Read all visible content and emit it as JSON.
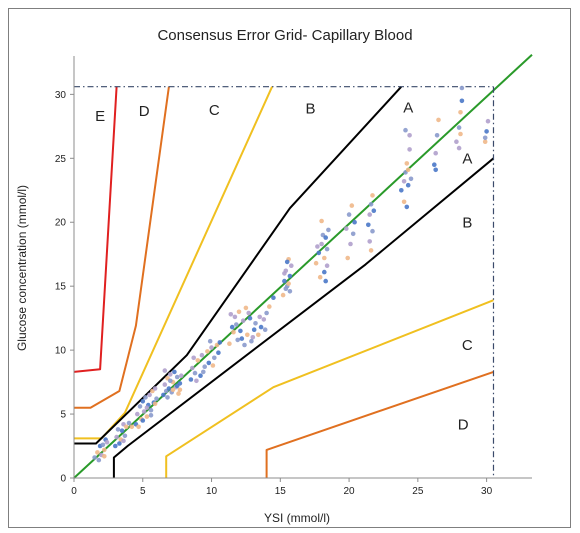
{
  "chart_data": {
    "type": "scatter",
    "title": "Consensus Error Grid- Capillary Blood",
    "xlabel": "YSI (mmol/l)",
    "ylabel": "Glucose concentration (mmol/l)",
    "xlim": [
      0,
      33.3
    ],
    "ylim": [
      0,
      33
    ],
    "xticks": [
      0,
      5,
      10,
      15,
      20,
      25,
      30
    ],
    "yticks": [
      0,
      5,
      10,
      15,
      20,
      25,
      30
    ],
    "grid": false,
    "legend": "none",
    "colors": {
      "E": "#e02020",
      "D": "#e07020",
      "C": "#f0c020",
      "B": "#000000",
      "identity": "#2a9a2a",
      "limit": "#3a4a6a",
      "points": [
        "#8a9acc",
        "#f0b88a",
        "#4a78c8",
        "#b0a0cc"
      ]
    },
    "zone_labels": [
      {
        "text": "E",
        "x": 1.9,
        "y": 27.9
      },
      {
        "text": "D",
        "x": 5.1,
        "y": 28.3
      },
      {
        "text": "C",
        "x": 10.2,
        "y": 28.4
      },
      {
        "text": "B",
        "x": 17.2,
        "y": 28.5
      },
      {
        "text": "A",
        "x": 24.3,
        "y": 28.6
      },
      {
        "text": "A",
        "x": 28.6,
        "y": 24.6
      },
      {
        "text": "B",
        "x": 28.6,
        "y": 19.6
      },
      {
        "text": "C",
        "x": 28.6,
        "y": 10.0
      },
      {
        "text": "D",
        "x": 28.3,
        "y": 3.8
      }
    ],
    "boundaries": [
      {
        "zone": "E",
        "color": "#e02020",
        "points": [
          [
            0,
            8.3
          ],
          [
            1.9,
            8.5
          ],
          [
            3.1,
            30.6
          ]
        ]
      },
      {
        "zone": "D",
        "color": "#e07020",
        "points": [
          [
            0,
            5.5
          ],
          [
            1.2,
            5.5
          ],
          [
            3.3,
            6.8
          ],
          [
            4.5,
            11.9
          ],
          [
            6.9,
            30.6
          ]
        ]
      },
      {
        "zone": "C",
        "color": "#f0c020",
        "points": [
          [
            0,
            3.1
          ],
          [
            2.0,
            3.1
          ],
          [
            3.7,
            5.1
          ],
          [
            14.4,
            30.6
          ]
        ]
      },
      {
        "zone": "B",
        "color": "#000000",
        "points": [
          [
            0,
            2.7
          ],
          [
            1.6,
            2.7
          ],
          [
            8.2,
            9.6
          ],
          [
            15.7,
            21.1
          ],
          [
            23.8,
            30.6
          ]
        ]
      },
      {
        "zone": "B",
        "color": "#000000",
        "points": [
          [
            2.9,
            0
          ],
          [
            2.9,
            1.6
          ],
          [
            3.9,
            2.5
          ],
          [
            21.2,
            16.7
          ],
          [
            30.5,
            25.0
          ]
        ]
      },
      {
        "zone": "C",
        "color": "#f0c020",
        "points": [
          [
            6.7,
            0
          ],
          [
            6.7,
            1.7
          ],
          [
            14.5,
            7.1
          ],
          [
            30.5,
            13.9
          ]
        ]
      },
      {
        "zone": "D",
        "color": "#e07020",
        "points": [
          [
            14.0,
            0
          ],
          [
            14.0,
            2.2
          ],
          [
            30.5,
            8.3
          ]
        ]
      }
    ],
    "identity_line": [
      [
        0,
        0
      ],
      [
        33.3,
        33.1
      ]
    ],
    "limit_lines": {
      "x": 30.5,
      "y": 30.6
    },
    "series": [
      {
        "x": [
          1.5,
          1.7,
          1.9,
          2.0,
          2.1,
          2.2,
          2.3,
          2.4,
          1.8,
          2.2
        ],
        "y": [
          1.6,
          2.0,
          2.5,
          1.8,
          2.6,
          2.2,
          3.0,
          2.8,
          1.4,
          1.7
        ]
      },
      {
        "x": [
          3.0,
          3.1,
          3.2,
          3.4,
          3.5,
          3.6,
          3.7,
          3.8,
          3.3,
          3.6,
          4.0,
          4.2
        ],
        "y": [
          2.5,
          3.2,
          3.8,
          3.0,
          3.7,
          4.2,
          3.3,
          4.0,
          2.7,
          2.9,
          4.3,
          4.0
        ]
      },
      {
        "x": [
          4.5,
          4.6,
          4.8,
          4.9,
          5.0,
          5.1,
          5.2,
          5.3,
          5.4,
          5.5,
          5.6,
          5.7,
          5.8,
          5.9,
          6.0,
          4.7,
          5.0,
          5.3,
          5.6,
          5.9
        ],
        "y": [
          4.2,
          5.0,
          5.6,
          4.6,
          6.0,
          5.2,
          6.3,
          4.8,
          5.7,
          6.5,
          5.3,
          6.8,
          5.9,
          7.0,
          6.2,
          4.0,
          4.5,
          5.5,
          4.9,
          5.8
        ]
      },
      {
        "x": [
          6.5,
          6.6,
          6.7,
          6.8,
          6.9,
          7.0,
          7.1,
          7.2,
          7.3,
          7.4,
          7.5,
          7.6,
          7.7,
          7.8,
          6.8,
          7.2,
          7.5,
          6.6,
          7.0,
          7.7
        ],
        "y": [
          6.5,
          7.3,
          6.8,
          7.8,
          7.0,
          8.1,
          6.7,
          7.5,
          8.3,
          7.1,
          7.9,
          6.6,
          7.4,
          8.0,
          6.3,
          6.9,
          7.2,
          8.4,
          7.6,
          6.9
        ]
      },
      {
        "x": [
          8.5,
          8.6,
          8.8,
          9.0,
          9.2,
          9.3,
          9.5,
          9.7,
          9.8,
          10.0,
          10.2,
          10.4,
          10.6,
          8.9,
          9.4,
          10.1,
          10.5,
          8.7,
          9.9
        ],
        "y": [
          7.7,
          8.6,
          8.2,
          9.2,
          8.0,
          9.6,
          8.7,
          9.9,
          9.0,
          10.2,
          9.4,
          10.4,
          10.6,
          7.6,
          8.3,
          8.8,
          9.8,
          9.4,
          10.7
        ]
      },
      {
        "x": [
          11.3,
          11.5,
          11.7,
          11.9,
          12.0,
          12.1,
          12.3,
          12.4,
          12.6,
          12.8,
          13.0,
          13.2,
          11.6,
          12.2,
          12.7,
          11.8,
          12.5,
          13.1,
          11.4,
          12.9
        ],
        "y": [
          10.5,
          11.8,
          12.6,
          10.8,
          13.0,
          11.5,
          12.3,
          10.4,
          11.2,
          12.5,
          11.0,
          12.1,
          11.4,
          10.9,
          12.9,
          12.0,
          13.3,
          11.6,
          12.8,
          10.7
        ]
      },
      {
        "x": [
          13.4,
          13.6,
          13.8,
          14.0,
          14.2,
          14.5,
          13.5,
          13.9
        ],
        "y": [
          11.2,
          11.8,
          12.4,
          12.9,
          13.4,
          14.1,
          12.6,
          11.6
        ]
      },
      {
        "x": [
          15.2,
          15.3,
          15.4,
          15.5,
          15.6,
          15.7,
          15.8,
          15.4,
          15.6,
          15.5,
          15.3,
          15.7
        ],
        "y": [
          14.3,
          15.4,
          16.2,
          15.0,
          17.1,
          15.8,
          16.6,
          14.8,
          15.2,
          16.9,
          16.0,
          14.6
        ]
      },
      {
        "x": [
          17.6,
          17.8,
          18.0,
          18.1,
          18.2,
          18.3,
          18.4,
          18.5,
          17.9,
          18.2,
          17.7,
          18.4,
          18.0,
          18.3
        ],
        "y": [
          16.8,
          17.6,
          18.3,
          19.0,
          17.2,
          18.8,
          16.6,
          19.4,
          15.7,
          16.1,
          18.1,
          17.9,
          20.1,
          15.4
        ]
      },
      {
        "x": [
          19.8,
          20.0,
          20.2,
          20.4,
          20.1,
          20.3,
          19.9,
          21.4,
          21.5,
          21.6,
          21.7,
          21.8,
          21.5,
          21.7,
          21.6
        ],
        "y": [
          19.5,
          20.6,
          21.3,
          20.0,
          18.3,
          19.1,
          17.2,
          19.8,
          20.6,
          21.4,
          22.1,
          20.9,
          18.5,
          19.3,
          17.8
        ]
      },
      {
        "x": [
          23.8,
          24.0,
          24.1,
          24.2,
          24.3,
          24.4,
          24.5,
          24.0,
          24.2,
          24.4,
          24.1,
          24.3
        ],
        "y": [
          22.5,
          23.2,
          23.9,
          24.6,
          22.9,
          25.7,
          23.4,
          21.6,
          21.2,
          26.8,
          27.2,
          24.1
        ]
      },
      {
        "x": [
          26.2,
          26.3,
          26.4,
          26.5,
          26.3,
          27.8,
          28.0,
          28.1,
          28.2,
          28.0,
          28.2,
          29.9,
          30.0,
          30.1,
          29.9,
          28.1
        ],
        "y": [
          24.5,
          25.4,
          26.8,
          28.0,
          24.1,
          26.3,
          27.4,
          28.6,
          29.5,
          25.8,
          30.5,
          26.3,
          27.1,
          27.9,
          26.6,
          26.9
        ]
      }
    ]
  }
}
